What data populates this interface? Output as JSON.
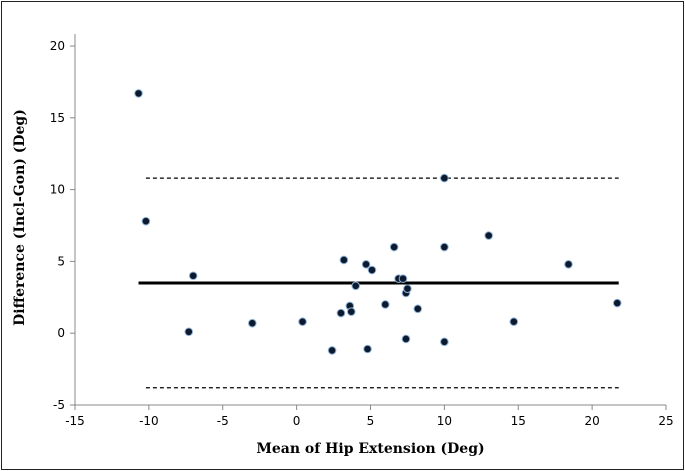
{
  "chart_data": {
    "type": "scatter",
    "title": "",
    "xlabel": "Mean of Hip Extension (Deg)",
    "ylabel": "Difference (Incl-Gon) (Deg)",
    "xlim": [
      -15,
      25
    ],
    "ylim": [
      -5,
      20
    ],
    "xticks": [
      -15,
      -10,
      -5,
      0,
      5,
      10,
      15,
      20,
      25
    ],
    "yticks": [
      -5,
      0,
      5,
      10,
      15,
      20
    ],
    "grid": false,
    "legend": "none",
    "colors": {
      "point": "#0d1a2e",
      "point_edge": "#8fb3d9",
      "line": "#000000"
    },
    "mean_line": {
      "y": 3.5,
      "x_from": -10.7,
      "x_to": 21.8
    },
    "limits_of_agreement": [
      {
        "y": 10.8,
        "x_from": -10.2,
        "x_to": 21.8
      },
      {
        "y": -3.8,
        "x_from": -10.2,
        "x_to": 21.8
      }
    ],
    "points": [
      {
        "x": -10.7,
        "y": 16.7
      },
      {
        "x": -10.2,
        "y": 7.8
      },
      {
        "x": -7.0,
        "y": 4.0
      },
      {
        "x": -7.3,
        "y": 0.1
      },
      {
        "x": -3.0,
        "y": 0.7
      },
      {
        "x": 0.4,
        "y": 0.8
      },
      {
        "x": 2.4,
        "y": -1.2
      },
      {
        "x": 3.0,
        "y": 1.4
      },
      {
        "x": 3.2,
        "y": 5.1
      },
      {
        "x": 3.6,
        "y": 1.9
      },
      {
        "x": 3.7,
        "y": 1.5
      },
      {
        "x": 4.0,
        "y": 3.3
      },
      {
        "x": 4.7,
        "y": 4.8
      },
      {
        "x": 4.8,
        "y": -1.1
      },
      {
        "x": 5.1,
        "y": 4.4
      },
      {
        "x": 6.0,
        "y": 2.0
      },
      {
        "x": 6.6,
        "y": 6.0
      },
      {
        "x": 6.9,
        "y": 3.8
      },
      {
        "x": 7.2,
        "y": 3.8
      },
      {
        "x": 7.4,
        "y": 2.8
      },
      {
        "x": 7.5,
        "y": 3.1
      },
      {
        "x": 7.4,
        "y": -0.4
      },
      {
        "x": 8.2,
        "y": 1.7
      },
      {
        "x": 10.0,
        "y": 10.8
      },
      {
        "x": 10.0,
        "y": 6.0
      },
      {
        "x": 10.0,
        "y": -0.6
      },
      {
        "x": 13.0,
        "y": 6.8
      },
      {
        "x": 14.7,
        "y": 0.8
      },
      {
        "x": 18.4,
        "y": 4.8
      },
      {
        "x": 21.7,
        "y": 2.1
      }
    ]
  }
}
